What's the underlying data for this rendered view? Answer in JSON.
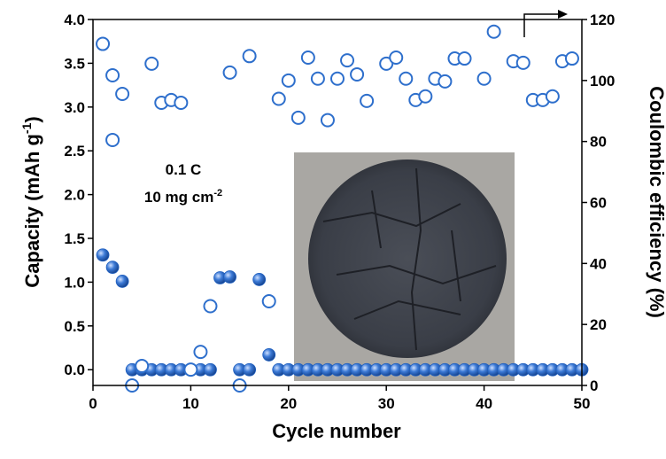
{
  "chart_data": {
    "type": "scatter",
    "xlabel": "Cycle number",
    "ylabel": [
      "Capacity (mAh g",
      "-1",
      ")"
    ],
    "y2label": "Coulombic efficiency (%)",
    "annotations": [
      "0.1 C",
      "10 mg cm",
      "-2"
    ],
    "xlim": [
      0,
      50
    ],
    "xticks": [
      0,
      10,
      20,
      30,
      40,
      50
    ],
    "ylim": [
      -0.18,
      4.0
    ],
    "yticks": [
      {
        "value": 0,
        "label": "0.0"
      },
      {
        "value": 0.5,
        "label": "0.5"
      },
      {
        "value": 1,
        "label": "1.0"
      },
      {
        "value": 1.5,
        "label": "1.5"
      },
      {
        "value": 2,
        "label": "2.0"
      },
      {
        "value": 2.5,
        "label": "2.5"
      },
      {
        "value": 3,
        "label": "3.0"
      },
      {
        "value": 3.5,
        "label": "3.5"
      },
      {
        "value": 4,
        "label": "4.0"
      }
    ],
    "y2lim": [
      0,
      120
    ],
    "y2ticks": [
      0,
      20,
      40,
      60,
      80,
      100,
      120
    ],
    "series": [
      {
        "color": "#1f5fbf",
        "marker": "filled",
        "x": [
          1,
          2,
          3,
          4,
          5,
          6,
          7,
          8,
          9,
          10,
          11,
          12,
          13,
          14,
          15,
          16,
          17,
          18,
          19,
          20,
          21,
          22,
          23,
          24,
          25,
          26,
          27,
          28,
          29,
          30,
          31,
          32,
          33,
          34,
          35,
          36,
          37,
          38,
          39,
          40,
          41,
          42,
          43,
          44,
          45,
          46,
          47,
          48,
          49,
          50
        ],
        "values": [
          1.31,
          1.17,
          1.01,
          0,
          0,
          0,
          0,
          0,
          0,
          0,
          0,
          0,
          1.05,
          1.06,
          0,
          0,
          1.03,
          0.17,
          0,
          0,
          0,
          0,
          0,
          0,
          0,
          0,
          0,
          0,
          0,
          0,
          0,
          0,
          0,
          0,
          0,
          0,
          0,
          0,
          0,
          0,
          0,
          0,
          0,
          0,
          0,
          0,
          0,
          0,
          0,
          0
        ]
      },
      {
        "color": "#2e6fcc",
        "marker": "open",
        "axis": "y2",
        "x": [
          1,
          2,
          2,
          3,
          4,
          5,
          6,
          7,
          8,
          9,
          10,
          11,
          12,
          14,
          15,
          16,
          18,
          19,
          20,
          21,
          22,
          23,
          24,
          25,
          26,
          27,
          28,
          30,
          31,
          32,
          33,
          34,
          35,
          36,
          37,
          38,
          40,
          41,
          43,
          44,
          45,
          46,
          47,
          48,
          49
        ],
        "values": [
          112,
          101.7,
          80.5,
          95.6,
          0,
          6.4,
          105.5,
          92.7,
          93.6,
          92.7,
          5.2,
          11,
          26,
          102.6,
          0,
          108,
          27.6,
          94,
          100,
          87.8,
          107.5,
          100.6,
          87,
          100.6,
          106.6,
          102,
          93.3,
          105.5,
          107.5,
          100.6,
          93.6,
          94.8,
          100.6,
          99.7,
          107.2,
          107.2,
          100.6,
          116,
          106.3,
          105.8,
          93.6,
          93.6,
          94.8,
          106.3,
          107.2
        ]
      }
    ]
  }
}
